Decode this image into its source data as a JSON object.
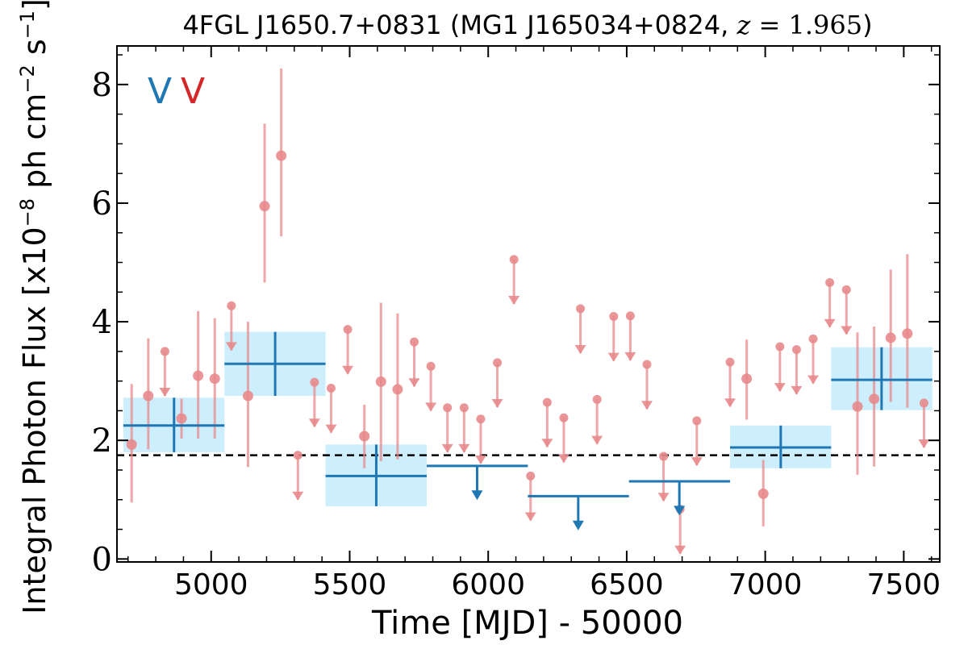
{
  "chart_data": {
    "type": "scatter",
    "title": {
      "prefix": "4FGL J1650.7+0831 (MG1 J165034+0824, ",
      "z_var": "z",
      "z_eq": " = 1.965",
      "suffix": ")"
    },
    "xlabel": "Time [MJD] - 50000",
    "ylabel": {
      "pre": "Integral Photon Flux [x10",
      "exp1": "−8",
      "mid": " ph cm",
      "exp2": "−2",
      "mid2": " s",
      "exp3": "−1",
      "post": "]"
    },
    "xlim": [
      4660,
      7630
    ],
    "ylim": [
      -0.05,
      8.65
    ],
    "x_ticks": [
      5000,
      5500,
      6000,
      6500,
      7000,
      7500
    ],
    "y_ticks": [
      0,
      2,
      4,
      6,
      8
    ],
    "grid": false,
    "legend": {
      "position": "top-left",
      "entries": [
        {
          "label": "V",
          "color": "#1f77b4"
        },
        {
          "label": "V",
          "color": "#d62728"
        }
      ]
    },
    "mean_flux": 1.75,
    "colors": {
      "fine_points": "#e88a8c",
      "coarse_bins": "#1f77b4",
      "coarse_band": "#cdeefc",
      "mean_line": "#000000"
    },
    "series": [
      {
        "name": "",
        "points": [
          {
            "x": 4713,
            "y": 1.93,
            "lo": 0.95,
            "hi": 2.95
          },
          {
            "x": 4773,
            "y": 2.75,
            "lo": 1.85,
            "hi": 3.72
          },
          {
            "x": 4893,
            "y": 2.37,
            "lo": 2.03,
            "hi": 2.7
          },
          {
            "x": 4953,
            "y": 3.09,
            "lo": 2.03,
            "hi": 4.18
          },
          {
            "x": 5013,
            "y": 3.04,
            "lo": 2.03,
            "hi": 4.06
          },
          {
            "x": 5133,
            "y": 2.75,
            "lo": 1.55,
            "hi": 4.0
          },
          {
            "x": 5193,
            "y": 5.95,
            "lo": 4.66,
            "hi": 7.34
          },
          {
            "x": 5253,
            "y": 6.8,
            "lo": 5.44,
            "hi": 8.27
          },
          {
            "x": 5553,
            "y": 2.07,
            "lo": 1.53,
            "hi": 2.6
          },
          {
            "x": 5613,
            "y": 2.99,
            "lo": 1.65,
            "hi": 4.32
          },
          {
            "x": 5673,
            "y": 2.86,
            "lo": 1.68,
            "hi": 4.14
          },
          {
            "x": 6933,
            "y": 3.04,
            "lo": 2.35,
            "hi": 3.7
          },
          {
            "x": 6993,
            "y": 1.1,
            "lo": 0.55,
            "hi": 1.67
          },
          {
            "x": 7333,
            "y": 2.57,
            "lo": 1.42,
            "hi": 3.82
          },
          {
            "x": 7393,
            "y": 2.7,
            "lo": 1.56,
            "hi": 3.92
          },
          {
            "x": 7453,
            "y": 3.73,
            "lo": 2.65,
            "hi": 4.88
          },
          {
            "x": 7513,
            "y": 3.8,
            "lo": 2.55,
            "hi": 5.14
          }
        ],
        "upper_limits": [
          {
            "x": 4833,
            "y": 3.5
          },
          {
            "x": 5073,
            "y": 4.27
          },
          {
            "x": 5313,
            "y": 1.75
          },
          {
            "x": 5373,
            "y": 2.98
          },
          {
            "x": 5433,
            "y": 2.88
          },
          {
            "x": 5493,
            "y": 3.87
          },
          {
            "x": 5733,
            "y": 3.66
          },
          {
            "x": 5793,
            "y": 3.25
          },
          {
            "x": 5853,
            "y": 2.55
          },
          {
            "x": 5913,
            "y": 2.55
          },
          {
            "x": 5973,
            "y": 2.36
          },
          {
            "x": 6033,
            "y": 3.31
          },
          {
            "x": 6093,
            "y": 5.05
          },
          {
            "x": 6153,
            "y": 1.4
          },
          {
            "x": 6213,
            "y": 2.64
          },
          {
            "x": 6273,
            "y": 2.38
          },
          {
            "x": 6333,
            "y": 4.22
          },
          {
            "x": 6393,
            "y": 2.69
          },
          {
            "x": 6453,
            "y": 4.09
          },
          {
            "x": 6513,
            "y": 4.1
          },
          {
            "x": 6573,
            "y": 3.28
          },
          {
            "x": 6633,
            "y": 1.73
          },
          {
            "x": 6693,
            "y": 0.84
          },
          {
            "x": 6753,
            "y": 2.33
          },
          {
            "x": 6873,
            "y": 3.32
          },
          {
            "x": 7053,
            "y": 3.58
          },
          {
            "x": 7113,
            "y": 3.53
          },
          {
            "x": 7173,
            "y": 3.71
          },
          {
            "x": 7233,
            "y": 4.66
          },
          {
            "x": 7293,
            "y": 4.54
          },
          {
            "x": 7573,
            "y": 2.63
          }
        ]
      },
      {
        "name": "",
        "bins": [
          {
            "x0": 4683,
            "x1": 5048,
            "xc": 4866,
            "y": 2.25,
            "lo": 1.8,
            "hi": 2.72
          },
          {
            "x0": 5048,
            "x1": 5413,
            "xc": 5231,
            "y": 3.29,
            "lo": 2.75,
            "hi": 3.83
          },
          {
            "x0": 5413,
            "x1": 5778,
            "xc": 5596,
            "y": 1.4,
            "lo": 0.89,
            "hi": 1.93
          }
        ],
        "bin_upper_limits": [
          {
            "x0": 5778,
            "x1": 6143,
            "xc": 5960,
            "y": 1.57
          },
          {
            "x0": 6143,
            "x1": 6508,
            "xc": 6325,
            "y": 1.06
          },
          {
            "x0": 6508,
            "x1": 6873,
            "xc": 6690,
            "y": 1.31
          }
        ],
        "bins_late": [
          {
            "x0": 6873,
            "x1": 7238,
            "xc": 7056,
            "y": 1.88,
            "lo": 1.53,
            "hi": 2.25
          },
          {
            "x0": 7238,
            "x1": 7603,
            "xc": 7420,
            "y": 3.02,
            "lo": 2.51,
            "hi": 3.57
          }
        ]
      }
    ]
  }
}
